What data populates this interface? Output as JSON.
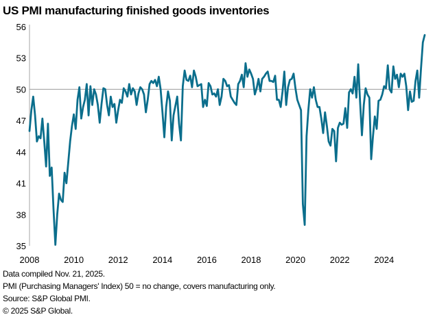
{
  "chart_data": {
    "type": "line",
    "title": "US PMI manufacturing finished goods inventories",
    "xlabel": "",
    "ylabel": "",
    "x_start": "2008-01",
    "frequency": "monthly",
    "x_ticks": [
      "2008",
      "2010",
      "2012",
      "2014",
      "2016",
      "2018",
      "2020",
      "2022",
      "2024"
    ],
    "y_ticks": [
      35,
      38,
      41,
      44,
      47,
      50,
      53,
      56
    ],
    "ylim": [
      35,
      56
    ],
    "reference_line": 50,
    "grid": false,
    "line_color": "#0b6e8c",
    "reference_color": "#a6a6a6",
    "series": [
      {
        "values": [
          46,
          48,
          49.3,
          47.5,
          45,
          45.5,
          45.3,
          47.2,
          45,
          42.6,
          46.7,
          41.7,
          42.5,
          38.5,
          35.1,
          38,
          40,
          39.4,
          39.2,
          42,
          41,
          43,
          45,
          46.5,
          47.6,
          46.2,
          49,
          50.2,
          47.2,
          48.3,
          49,
          50.5,
          47.5,
          50.3,
          48.5,
          50,
          49.5,
          48.5,
          46.8,
          48.6,
          50.1,
          50,
          48.5,
          47.5,
          49.3,
          48.3,
          48.6,
          46.8,
          48,
          49,
          48.7,
          50.1,
          49.8,
          49.3,
          50.5,
          49.5,
          50.1,
          49.8,
          48.5,
          49.6,
          50.2,
          50,
          49.5,
          47.8,
          49,
          50.5,
          50.8,
          50.6,
          50.9,
          50.3,
          51.2,
          50,
          47.8,
          45.4,
          48.3,
          49.8,
          48.9,
          45.1,
          47.5,
          48.4,
          49.3,
          46.7,
          45.1,
          50.3,
          51.8,
          50.9,
          50.8,
          51.3,
          50.2,
          51.8,
          51.2,
          50.3,
          50.4,
          50.5,
          48.3,
          49,
          48.4,
          50.6,
          50.3,
          49.5,
          49.6,
          49.3,
          50,
          48.5,
          49.3,
          51,
          50.8,
          50.3,
          50.4,
          49.3,
          49,
          48.7,
          48.5,
          50.5,
          50.8,
          51.4,
          50.2,
          52.5,
          51.2,
          51.9,
          51.5,
          51,
          49.5,
          50.1,
          51,
          49.8,
          51,
          51.2,
          51.5,
          51.7,
          50.8,
          50.8,
          50.7,
          51.3,
          49,
          49,
          48.3,
          49.8,
          51.7,
          48.5,
          50.2,
          50.9,
          51,
          51.5,
          50.1,
          49,
          48.5,
          48,
          39,
          37,
          45.5,
          48,
          50,
          49.2,
          50.2,
          49,
          48.3,
          48.3,
          47.2,
          45.8,
          47.8,
          46.5,
          45,
          44.6,
          46.2,
          46,
          43.1,
          46.3,
          46.8,
          46.6,
          46.7,
          48.2,
          46.3,
          49.7,
          50,
          49.6,
          51.2,
          49.2,
          52.4,
          48.8,
          45.6,
          48.5,
          50.1,
          49.5,
          49.2,
          43.3,
          45.5,
          47.4,
          46.2,
          48.9,
          49,
          49.5,
          50.3,
          50.1,
          52.3,
          50,
          49.7,
          52.2,
          51,
          51.4,
          50.2,
          51.5,
          51.2,
          51.5,
          50.3,
          48,
          49.8,
          48.8,
          48.9,
          50.8,
          51.8,
          49.2,
          52,
          54.5,
          55.2
        ]
      }
    ]
  },
  "footnotes": [
    "Data compiled Nov. 21, 2025.",
    "PMI (Purchasing Managers' Index) 50 =  no change, covers manufacturing only.",
    "Source: S&P Global PMI.",
    "© 2025 S&P Global."
  ]
}
